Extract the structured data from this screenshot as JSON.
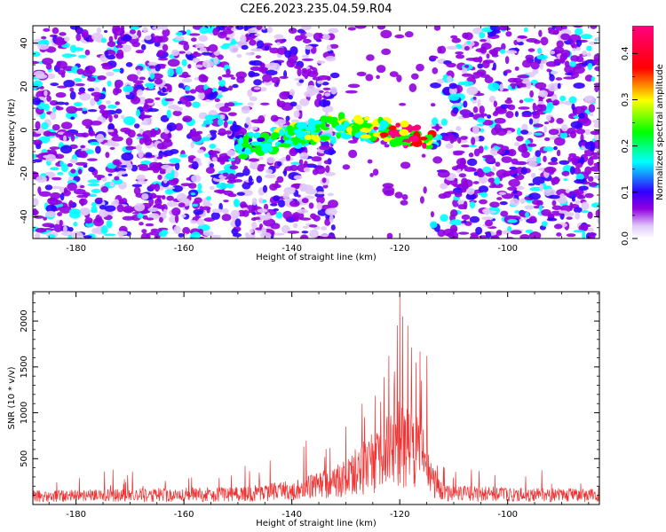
{
  "title": "C2E6.2023.235.04.59.R04",
  "chart_data": [
    {
      "type": "heatmap",
      "xlabel": "Height of straight line (km)",
      "ylabel": "Frequency (Hz)",
      "xlim": [
        -188,
        -83
      ],
      "ylim": [
        -50,
        48
      ],
      "xticks": [
        "-180",
        "-160",
        "-140",
        "-120",
        "-100"
      ],
      "yticks": [
        "-40",
        "-20",
        "0",
        "20",
        "40"
      ],
      "colorbar": {
        "label": "Normalized spectral amplitude",
        "range": [
          0.0,
          0.46
        ],
        "ticks": [
          "0.0",
          "0.1",
          "0.2",
          "0.3",
          "0.4"
        ],
        "colormap": [
          "#ffffff",
          "#e0c8f8",
          "#9000e0",
          "#3000ff",
          "#00ffff",
          "#00ff00",
          "#ffff00",
          "#ff0000",
          "#ff0080"
        ]
      },
      "empty_region_x": [
        -132,
        -114
      ],
      "signal_band": {
        "x_range": [
          -150,
          -114
        ],
        "freq_start": -8,
        "freq_mid": 2,
        "freq_end": -4,
        "peak_x": -120,
        "peak_amplitude": 0.45
      }
    },
    {
      "type": "line",
      "xlabel": "Height of straight line (km)",
      "ylabel": "SNR (10 * v/v)",
      "xlim": [
        -188,
        -83
      ],
      "ylim": [
        0,
        2320
      ],
      "xticks": [
        "-180",
        "-160",
        "-140",
        "-120",
        "-100"
      ],
      "yticks": [
        "500",
        "1000",
        "1500",
        "2000"
      ],
      "color": "#ee3333",
      "baseline": [
        [
          -188,
          120
        ],
        [
          -150,
          150
        ],
        [
          -140,
          200
        ],
        [
          -132,
          320
        ],
        [
          -128,
          480
        ],
        [
          -124,
          650
        ],
        [
          -120,
          900
        ],
        [
          -116,
          700
        ],
        [
          -114,
          350
        ],
        [
          -112,
          160
        ],
        [
          -83,
          130
        ]
      ],
      "peaks": [
        {
          "x": -144,
          "y": 480
        },
        {
          "x": -130,
          "y": 850
        },
        {
          "x": -127,
          "y": 1100
        },
        {
          "x": -123.5,
          "y": 1120
        },
        {
          "x": -122,
          "y": 1620
        },
        {
          "x": -121,
          "y": 1450
        },
        {
          "x": -120,
          "y": 2300
        },
        {
          "x": -119.5,
          "y": 2050
        },
        {
          "x": -118.5,
          "y": 1950
        },
        {
          "x": -117,
          "y": 1550
        },
        {
          "x": -116,
          "y": 1350
        },
        {
          "x": -115,
          "y": 1620
        }
      ]
    }
  ]
}
